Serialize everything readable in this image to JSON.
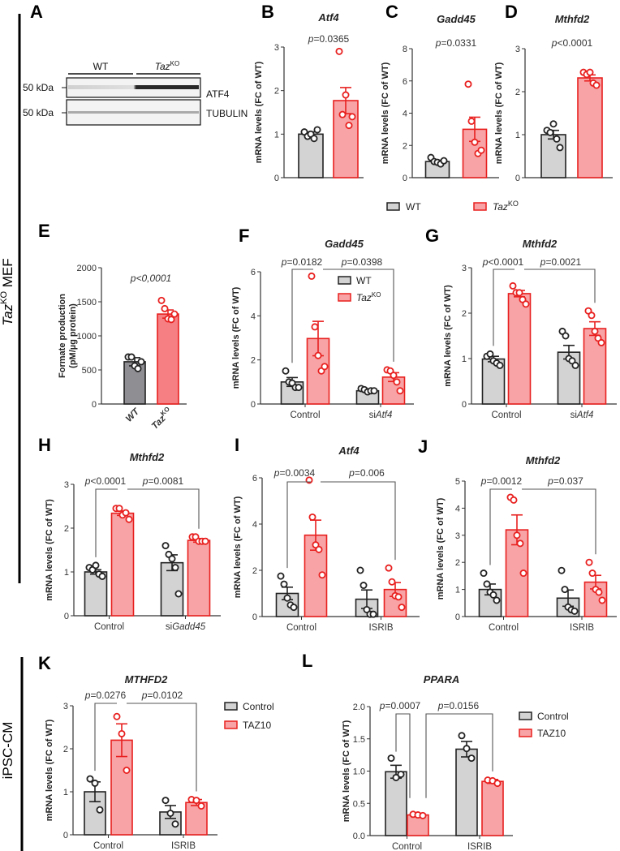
{
  "figure": {
    "side_labels": {
      "mef_italic": "Taz",
      "mef_sup": "KO",
      "mef_rest": " MEF",
      "ipsc": "iPSC-CM"
    },
    "blot": {
      "letter": "A",
      "group_wt": "WT",
      "group_ko": "Taz",
      "group_ko_sup": "KO",
      "bands": [
        {
          "marker": "50 kDa",
          "protein": "ATF4"
        },
        {
          "marker": "50 kDa",
          "protein": "TUBULIN"
        }
      ]
    },
    "row1_legend": [
      {
        "name": "WT",
        "sup": ""
      },
      {
        "name": "Taz",
        "sup": "KO"
      }
    ]
  },
  "colors": {
    "wt_fill": "#d3d3d3",
    "wt_stroke": "#222222",
    "ko_fill": "#f8a3a5",
    "ko_stroke": "#e8201f",
    "e_wt_fill": "#8e8e93",
    "e_ko_fill": "#f57f83"
  },
  "chart_data": [
    {
      "id": "B",
      "letter": "B",
      "type": "bar",
      "title": "Atf4",
      "ylabel": "mRNA levels  (FC of WT)",
      "ylim": [
        0,
        3
      ],
      "yticks": [
        0,
        1,
        2,
        3
      ],
      "ytick_labels": [
        "0",
        "1",
        "2",
        "3"
      ],
      "categories": [
        ""
      ],
      "series": [
        {
          "name": "WT",
          "sup": "",
          "fill": "#d3d3d3",
          "stroke": "#222222",
          "values": [
            1.0
          ],
          "sem": [
            0.05
          ],
          "points": [
            [
              1.05,
              0.95,
              1.0,
              0.9,
              1.1
            ]
          ]
        },
        {
          "name": "Taz",
          "sup": "KO",
          "fill": "#f8a3a5",
          "stroke": "#e8201f",
          "values": [
            1.77
          ],
          "sem": [
            0.3
          ],
          "points": [
            [
              2.9,
              1.45,
              1.9,
              1.2,
              1.4
            ]
          ]
        }
      ],
      "pvalues": [
        "p=0.0365"
      ],
      "legend": "shared-below"
    },
    {
      "id": "C",
      "letter": "C",
      "type": "bar",
      "title": "Gadd45",
      "ylabel": "mRNA levels (FC of WT)",
      "ylim": [
        0,
        8
      ],
      "yticks": [
        0,
        2,
        4,
        6,
        8
      ],
      "ytick_labels": [
        "0",
        "2",
        "4",
        "6",
        "8"
      ],
      "categories": [
        ""
      ],
      "series": [
        {
          "name": "WT",
          "sup": "",
          "fill": "#d3d3d3",
          "stroke": "#222222",
          "values": [
            1.0
          ],
          "sem": [
            0.08
          ],
          "points": [
            [
              1.25,
              1.0,
              0.95,
              0.85,
              1.05
            ]
          ]
        },
        {
          "name": "Taz",
          "sup": "KO",
          "fill": "#f8a3a5",
          "stroke": "#e8201f",
          "values": [
            3.0
          ],
          "sem": [
            0.75
          ],
          "points": [
            [
              5.8,
              3.5,
              2.2,
              1.5,
              1.7
            ]
          ]
        }
      ],
      "pvalues": [
        "p=0.0331"
      ],
      "legend": "shared-below"
    },
    {
      "id": "D",
      "letter": "D",
      "type": "bar",
      "title": "Mthfd2",
      "ylabel": "mRNA levels (FC of WT)",
      "ylim": [
        0,
        3
      ],
      "yticks": [
        0,
        1,
        2,
        3
      ],
      "ytick_labels": [
        "0",
        "1",
        "2",
        "3"
      ],
      "categories": [
        ""
      ],
      "series": [
        {
          "name": "WT",
          "sup": "",
          "fill": "#d3d3d3",
          "stroke": "#222222",
          "values": [
            1.0
          ],
          "sem": [
            0.1
          ],
          "points": [
            [
              1.1,
              1.05,
              1.25,
              0.9,
              0.7
            ]
          ]
        },
        {
          "name": "Taz",
          "sup": "KO",
          "fill": "#f8a3a5",
          "stroke": "#e8201f",
          "values": [
            2.32
          ],
          "sem": [
            0.07
          ],
          "points": [
            [
              2.45,
              2.4,
              2.45,
              2.2,
              2.15
            ]
          ]
        }
      ],
      "pvalues": [
        "p<0.0001"
      ],
      "legend": "shared-below"
    },
    {
      "id": "E",
      "letter": "E",
      "type": "bar",
      "title": "",
      "ylabel": [
        "Formate production",
        "(pM/µg protein)"
      ],
      "ylim": [
        0,
        2000
      ],
      "yticks": [
        0,
        500,
        1000,
        1500,
        2000
      ],
      "ytick_labels": [
        "0",
        "500",
        "1000",
        "1500",
        "2000"
      ],
      "categories": [
        ""
      ],
      "rotated_series_labels": true,
      "series": [
        {
          "name": "WT",
          "sup": "",
          "fill": "#8e8e93",
          "stroke": "#222222",
          "values": [
            620
          ],
          "sem": [
            60
          ],
          "points": [
            [
              690,
              690,
              560,
              520,
              620
            ]
          ]
        },
        {
          "name": "Taz",
          "sup": "KO",
          "fill": "#f57f83",
          "stroke": "#e8201f",
          "values": [
            1320
          ],
          "sem": [
            60
          ],
          "points": [
            [
              1520,
              1400,
              1250,
              1240,
              1320
            ]
          ]
        }
      ],
      "pvalues": [
        "p<0,0001"
      ],
      "legend": "none"
    },
    {
      "id": "F",
      "letter": "F",
      "type": "bar",
      "title": "Gadd45",
      "ylabel": "mRNA levels  (FC of WT)",
      "ylim": [
        0,
        6
      ],
      "yticks": [
        0,
        2,
        4,
        6
      ],
      "ytick_labels": [
        "0",
        "2",
        "4",
        "6"
      ],
      "categories": [
        "Control",
        "siAtf4"
      ],
      "series": [
        {
          "name": "WT",
          "sup": "",
          "fill": "#d3d3d3",
          "stroke": "#222222",
          "values": [
            1.0,
            0.6
          ],
          "sem": [
            0.2,
            0.05
          ],
          "points": [
            [
              1.5,
              1.0,
              0.95,
              0.75,
              0.75
            ],
            [
              0.7,
              0.65,
              0.55,
              0.6,
              0.6
            ]
          ]
        },
        {
          "name": "Taz",
          "sup": "KO",
          "fill": "#f8a3a5",
          "stroke": "#e8201f",
          "values": [
            2.97,
            1.22
          ],
          "sem": [
            0.78,
            0.2
          ],
          "points": [
            [
              5.8,
              3.5,
              2.2,
              1.5,
              1.7
            ],
            [
              1.55,
              1.5,
              1.3,
              1.0,
              0.6
            ]
          ]
        }
      ],
      "pvalues": [
        "p=0.0182",
        "p=0.0398"
      ],
      "legend": "inside-top"
    },
    {
      "id": "G",
      "letter": "G",
      "type": "bar",
      "title": "Mthfd2",
      "ylabel": "mRNA levels  (FC of WT)",
      "ylim": [
        0,
        3
      ],
      "yticks": [
        0,
        1,
        2,
        3
      ],
      "ytick_labels": [
        "0",
        "1",
        "2",
        "3"
      ],
      "categories": [
        "Control",
        "siAtf4"
      ],
      "series": [
        {
          "name": "WT",
          "sup": "",
          "fill": "#d3d3d3",
          "stroke": "#222222",
          "values": [
            0.99,
            1.14
          ],
          "sem": [
            0.06,
            0.15
          ],
          "points": [
            [
              1.05,
              1.1,
              0.95,
              0.9,
              0.85
            ],
            [
              1.6,
              1.5,
              1.0,
              0.95,
              0.85
            ]
          ]
        },
        {
          "name": "Taz",
          "sup": "KO",
          "fill": "#f8a3a5",
          "stroke": "#e8201f",
          "values": [
            2.43,
            1.66
          ],
          "sem": [
            0.07,
            0.15
          ],
          "points": [
            [
              2.6,
              2.45,
              2.45,
              2.3,
              2.2
            ],
            [
              2.05,
              1.95,
              1.6,
              1.45,
              1.35
            ]
          ]
        }
      ],
      "pvalues": [
        "p<0.0001",
        "p=0.0021"
      ],
      "legend": "none"
    },
    {
      "id": "H",
      "letter": "H",
      "type": "bar",
      "title": "Mthfd2",
      "ylabel": "mRNA levels  (FC of WT)",
      "ylim": [
        0,
        3
      ],
      "yticks": [
        0,
        1,
        2,
        3
      ],
      "ytick_labels": [
        "0",
        "1",
        "2",
        "3"
      ],
      "categories": [
        "Control",
        "siGadd45"
      ],
      "series": [
        {
          "name": "WT",
          "sup": "",
          "fill": "#d3d3d3",
          "stroke": "#222222",
          "values": [
            1.0,
            1.21
          ],
          "sem": [
            0.05,
            0.18
          ],
          "points": [
            [
              1.1,
              1.05,
              1.15,
              0.95,
              0.9
            ],
            [
              1.6,
              1.4,
              1.3,
              1.1,
              0.5
            ]
          ]
        },
        {
          "name": "Taz",
          "sup": "KO",
          "fill": "#f8a3a5",
          "stroke": "#e8201f",
          "values": [
            2.34,
            1.72
          ],
          "sem": [
            0.05,
            0.04
          ],
          "points": [
            [
              2.45,
              2.45,
              2.3,
              2.35,
              2.2
            ],
            [
              1.8,
              1.8,
              1.7,
              1.7,
              1.7
            ]
          ]
        }
      ],
      "pvalues": [
        "p<0.0001",
        "p=0.0081"
      ],
      "legend": "none"
    },
    {
      "id": "I",
      "letter": "I",
      "type": "bar",
      "title": "Atf4",
      "ylabel": "mRNA levels  (FC of WT)",
      "ylim": [
        0,
        6
      ],
      "yticks": [
        0,
        2,
        4,
        6
      ],
      "ytick_labels": [
        "0",
        "2",
        "4",
        "6"
      ],
      "categories": [
        "Control",
        "ISRIB"
      ],
      "series": [
        {
          "name": "WT",
          "sup": "",
          "fill": "#d3d3d3",
          "stroke": "#222222",
          "values": [
            1.0,
            0.75
          ],
          "sem": [
            0.27,
            0.4
          ],
          "points": [
            [
              1.75,
              1.4,
              0.8,
              0.5,
              0.4
            ],
            [
              2.0,
              1.35,
              0.3,
              0.1,
              0.1
            ]
          ]
        },
        {
          "name": "Taz",
          "sup": "KO",
          "fill": "#f8a3a5",
          "stroke": "#e8201f",
          "values": [
            3.52,
            1.17
          ],
          "sem": [
            0.65,
            0.3
          ],
          "points": [
            [
              5.9,
              4.3,
              3.1,
              2.9,
              1.8
            ],
            [
              2.1,
              1.5,
              0.9,
              0.85,
              0.4
            ]
          ]
        }
      ],
      "pvalues": [
        "p=0.0034",
        "p=0.006"
      ],
      "legend": "none"
    },
    {
      "id": "J",
      "letter": "J",
      "type": "bar",
      "title": "Mthfd2",
      "ylabel": "mRNA levels  (FC of WT)",
      "ylim": [
        0,
        5
      ],
      "yticks": [
        0,
        1,
        2,
        3,
        4,
        5
      ],
      "ytick_labels": [
        "0",
        "1",
        "2",
        "3",
        "4",
        "5"
      ],
      "categories": [
        "Control",
        "ISRIB"
      ],
      "series": [
        {
          "name": "WT",
          "sup": "",
          "fill": "#d3d3d3",
          "stroke": "#222222",
          "values": [
            1.0,
            0.68
          ],
          "sem": [
            0.2,
            0.3
          ],
          "points": [
            [
              1.6,
              1.2,
              0.9,
              0.8,
              0.6
            ],
            [
              1.7,
              1.0,
              0.35,
              0.25,
              0.2
            ]
          ]
        },
        {
          "name": "Taz",
          "sup": "KO",
          "fill": "#f8a3a5",
          "stroke": "#e8201f",
          "values": [
            3.2,
            1.27
          ],
          "sem": [
            0.55,
            0.25
          ],
          "points": [
            [
              4.4,
              4.3,
              3.0,
              2.7,
              1.6
            ],
            [
              2.0,
              1.6,
              1.0,
              0.9,
              0.6
            ]
          ]
        }
      ],
      "pvalues": [
        "p=0.0012",
        "p=0.037"
      ],
      "legend": "none"
    },
    {
      "id": "K",
      "letter": "K",
      "type": "bar",
      "title": "MTHFD2",
      "ylabel": "mRNA levels (FC of WT)",
      "ylim": [
        0,
        3
      ],
      "yticks": [
        0,
        1,
        2,
        3
      ],
      "ytick_labels": [
        "0",
        "1",
        "2",
        "3"
      ],
      "categories": [
        "Control",
        "ISRIB"
      ],
      "series": [
        {
          "name": "Control",
          "sup": "",
          "fill": "#d3d3d3",
          "stroke": "#222222",
          "values": [
            1.0,
            0.53
          ],
          "sem": [
            0.23,
            0.15
          ],
          "points": [
            [
              1.3,
              1.2,
              0.58
            ],
            [
              0.8,
              0.5,
              0.25
            ]
          ]
        },
        {
          "name": "TAZ10",
          "sup": "",
          "fill": "#f8a3a5",
          "stroke": "#e8201f",
          "values": [
            2.2,
            0.75
          ],
          "sem": [
            0.38,
            0.07
          ],
          "points": [
            [
              2.75,
              2.35,
              1.5
            ],
            [
              0.82,
              0.8,
              0.67
            ]
          ]
        }
      ],
      "pvalues": [
        "p=0.0276",
        "p=0.0102"
      ],
      "legend": "right"
    },
    {
      "id": "L",
      "letter": "L",
      "type": "bar",
      "title": "PPARA",
      "ylabel": "mRNA levels (FC of WT)",
      "ylim": [
        0,
        2
      ],
      "yticks": [
        0,
        0.5,
        1,
        1.5,
        2
      ],
      "ytick_labels": [
        "0.0",
        "0.5",
        "1.0",
        "1.5",
        "2.0"
      ],
      "categories": [
        "Control",
        "ISRIB"
      ],
      "series": [
        {
          "name": "Control",
          "sup": "",
          "fill": "#d3d3d3",
          "stroke": "#222222",
          "values": [
            0.99,
            1.34
          ],
          "sem": [
            0.1,
            0.12
          ],
          "points": [
            [
              1.2,
              0.9,
              0.95
            ],
            [
              1.55,
              1.35,
              1.2
            ]
          ]
        },
        {
          "name": "TAZ10",
          "sup": "",
          "fill": "#f8a3a5",
          "stroke": "#e8201f",
          "values": [
            0.32,
            0.84
          ],
          "sem": [
            0.01,
            0.03
          ],
          "points": [
            [
              0.33,
              0.32,
              0.31
            ],
            [
              0.86,
              0.85,
              0.81
            ]
          ]
        }
      ],
      "pvalues": [
        "p=0.0007",
        "p=0.0156"
      ],
      "legend": "right"
    }
  ]
}
